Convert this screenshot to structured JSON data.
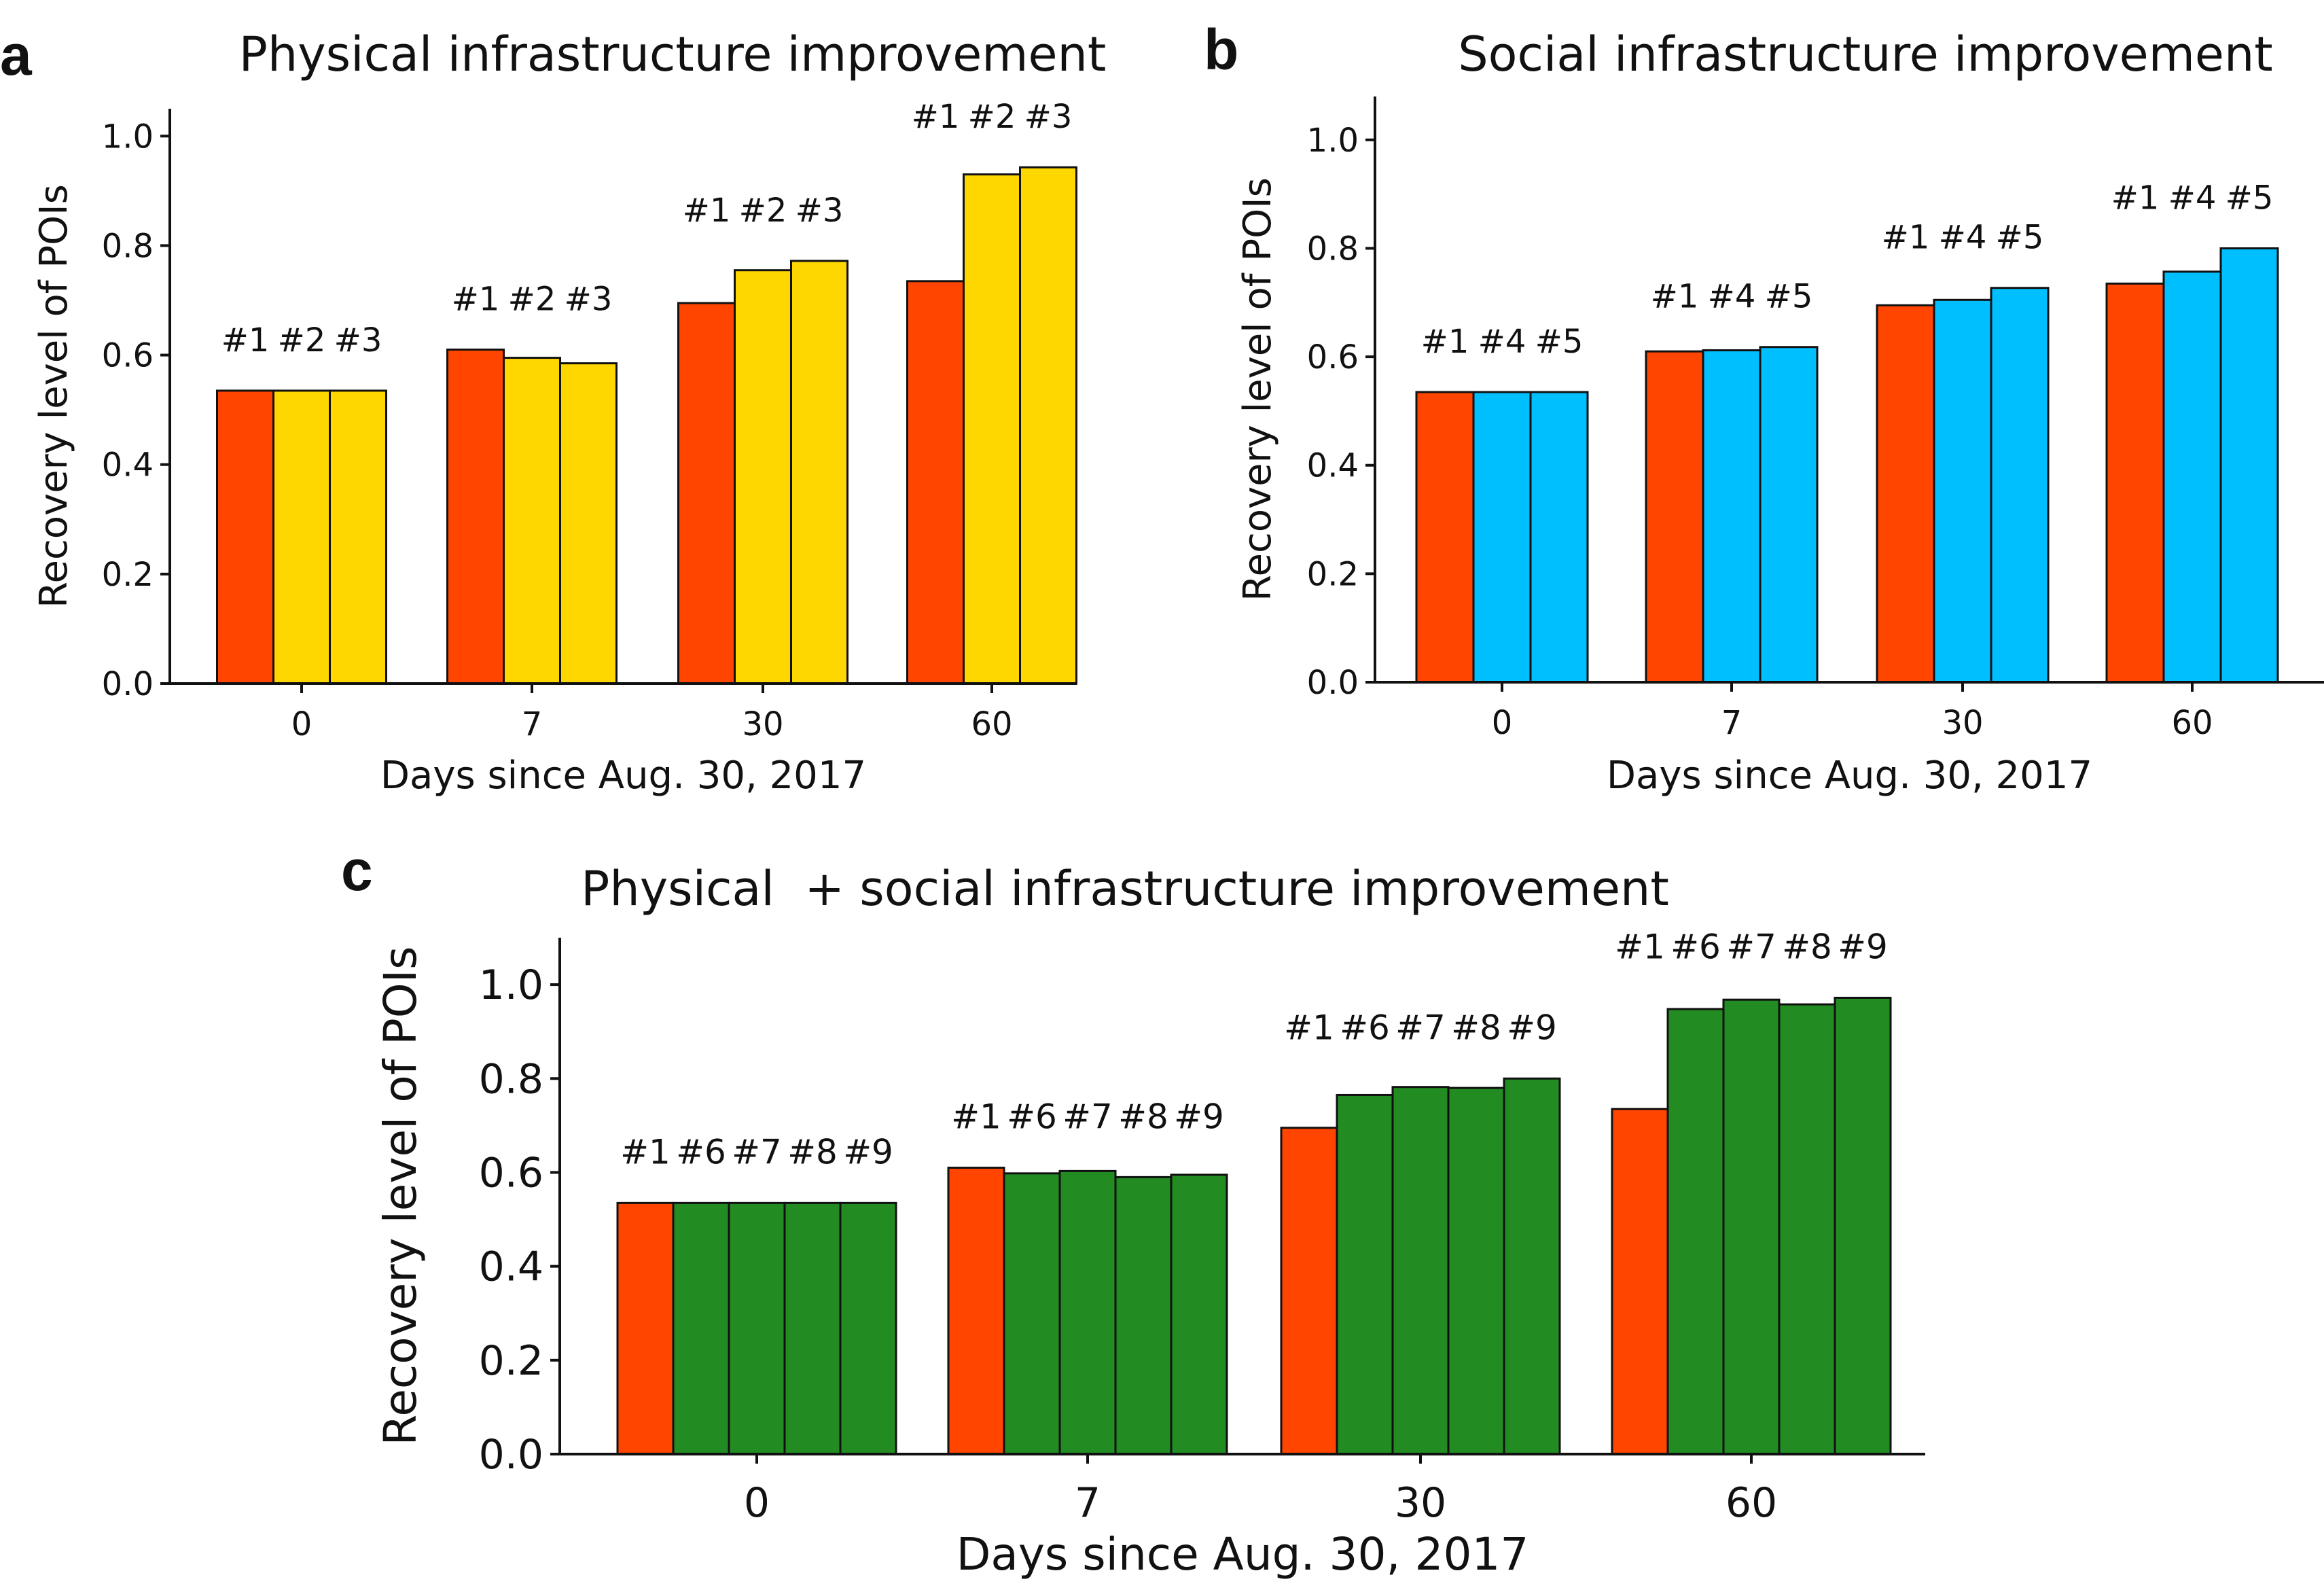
{
  "colors": {
    "baseline": "#FF4500",
    "physical": "#FFD700",
    "social": "#00BFFF",
    "combined": "#228B22"
  },
  "chart_data": [
    {
      "id": "a",
      "type": "bar",
      "panel_letter": "a",
      "title": "Physical infrastructure improvement",
      "xlabel": "Days since Aug. 30, 2017",
      "ylabel": "Recovery level of POIs",
      "ylim": [
        0,
        1.05
      ],
      "yticks": [
        "0.0",
        "0.2",
        "0.4",
        "0.6",
        "0.8",
        "1.0"
      ],
      "categories": [
        "0",
        "7",
        "30",
        "60"
      ],
      "series": [
        {
          "name": "#1",
          "color_key": "baseline",
          "values": [
            0.535,
            0.61,
            0.695,
            0.735
          ]
        },
        {
          "name": "#2",
          "color_key": "physical",
          "values": [
            0.535,
            0.595,
            0.755,
            0.93
          ]
        },
        {
          "name": "#3",
          "color_key": "physical",
          "values": [
            0.535,
            0.585,
            0.772,
            0.943
          ]
        }
      ]
    },
    {
      "id": "b",
      "type": "bar",
      "panel_letter": "b",
      "title": "Social infrastructure improvement",
      "xlabel": "Days since Aug. 30, 2017",
      "ylabel": "Recovery level of POIs",
      "ylim": [
        0,
        1.08
      ],
      "yticks": [
        "0.0",
        "0.2",
        "0.4",
        "0.6",
        "0.8",
        "1.0"
      ],
      "categories": [
        "0",
        "7",
        "30",
        "60"
      ],
      "series": [
        {
          "name": "#1",
          "color_key": "baseline",
          "values": [
            0.535,
            0.61,
            0.695,
            0.735
          ]
        },
        {
          "name": "#4",
          "color_key": "social",
          "values": [
            0.535,
            0.612,
            0.705,
            0.757
          ]
        },
        {
          "name": "#5",
          "color_key": "social",
          "values": [
            0.535,
            0.618,
            0.727,
            0.8
          ]
        }
      ]
    },
    {
      "id": "c",
      "type": "bar",
      "panel_letter": "c",
      "title": "Physical  + social infrastructure improvement",
      "xlabel": "Days since Aug. 30, 2017",
      "ylabel": "Recovery level of POIs",
      "ylim": [
        0,
        1.1
      ],
      "yticks": [
        "0.0",
        "0.2",
        "0.4",
        "0.6",
        "0.8",
        "1.0"
      ],
      "categories": [
        "0",
        "7",
        "30",
        "60"
      ],
      "series": [
        {
          "name": "#1",
          "color_key": "baseline",
          "values": [
            0.535,
            0.61,
            0.695,
            0.735
          ]
        },
        {
          "name": "#6",
          "color_key": "combined",
          "values": [
            0.535,
            0.598,
            0.765,
            0.948
          ]
        },
        {
          "name": "#7",
          "color_key": "combined",
          "values": [
            0.535,
            0.603,
            0.782,
            0.968
          ]
        },
        {
          "name": "#8",
          "color_key": "combined",
          "values": [
            0.535,
            0.59,
            0.78,
            0.958
          ]
        },
        {
          "name": "#9",
          "color_key": "combined",
          "values": [
            0.535,
            0.595,
            0.8,
            0.972
          ]
        }
      ]
    }
  ]
}
